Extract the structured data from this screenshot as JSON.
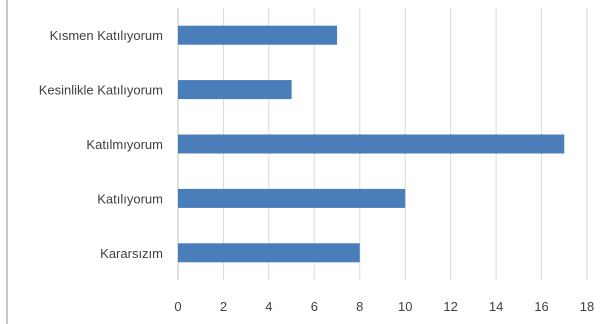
{
  "chart_data": {
    "type": "bar",
    "orientation": "horizontal",
    "categories": [
      "Kısmen Katılıyorum",
      "Kesinlikle Katılıyorum",
      "Katılmıyorum",
      "Katılıyorum",
      "Kararsızım"
    ],
    "values": [
      7,
      5,
      17,
      10,
      8
    ],
    "xlim": [
      0,
      18
    ],
    "xticks": [
      0,
      2,
      4,
      6,
      8,
      10,
      12,
      14,
      16,
      18
    ],
    "grid": true,
    "title": "",
    "xlabel": "",
    "ylabel": "",
    "bar_color": "#4a7ebb"
  }
}
